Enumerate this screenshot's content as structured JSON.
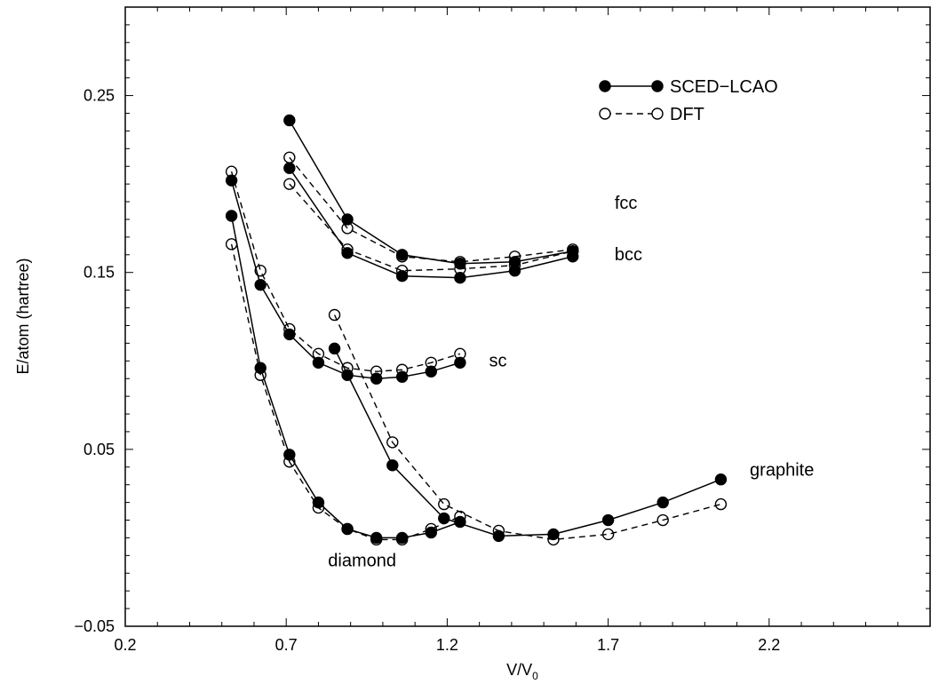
{
  "chart_data": {
    "type": "line",
    "xlabel": "V/V",
    "xlabel_sub": "0",
    "ylabel": "E/atom (hartree)",
    "xlim": [
      0.2,
      2.7
    ],
    "ylim": [
      -0.05,
      0.3
    ],
    "xticks": [
      0.2,
      0.7,
      1.2,
      1.7,
      2.2
    ],
    "xtick_labels": [
      "0.2",
      "0.7",
      "1.2",
      "1.7",
      "2.2"
    ],
    "yticks": [
      -0.05,
      0.05,
      0.15,
      0.25
    ],
    "ytick_labels": [
      "−0.05",
      "0.05",
      "0.15",
      "0.25"
    ],
    "grid": false,
    "legend_position": "top-right",
    "legend": [
      {
        "label": "SCED−LCAO",
        "style": "solid-filled"
      },
      {
        "label": "DFT",
        "style": "dashed-open"
      }
    ],
    "annotations": [
      {
        "text": "fcc",
        "x": 1.72,
        "y": 0.186
      },
      {
        "text": "bcc",
        "x": 1.72,
        "y": 0.157
      },
      {
        "text": "sc",
        "x": 1.33,
        "y": 0.097
      },
      {
        "text": "graphite",
        "x": 2.14,
        "y": 0.035
      },
      {
        "text": "diamond",
        "x": 0.83,
        "y": -0.016
      }
    ],
    "series": [
      {
        "name": "SCED−LCAO",
        "structure": "fcc",
        "style": "solid",
        "x": [
          0.71,
          0.89,
          1.06,
          1.24,
          1.41,
          1.59
        ],
        "y": [
          0.236,
          0.18,
          0.16,
          0.155,
          0.156,
          0.162
        ]
      },
      {
        "name": "DFT",
        "structure": "fcc",
        "style": "dashed",
        "x": [
          0.71,
          0.89,
          1.06,
          1.24,
          1.41,
          1.59
        ],
        "y": [
          0.215,
          0.175,
          0.159,
          0.156,
          0.159,
          0.163
        ]
      },
      {
        "name": "SCED−LCAO",
        "structure": "bcc",
        "style": "solid",
        "x": [
          0.71,
          0.89,
          1.06,
          1.24,
          1.41,
          1.59
        ],
        "y": [
          0.209,
          0.161,
          0.148,
          0.147,
          0.151,
          0.159
        ]
      },
      {
        "name": "DFT",
        "structure": "bcc",
        "style": "dashed",
        "x": [
          0.71,
          0.89,
          1.06,
          1.24,
          1.41,
          1.59
        ],
        "y": [
          0.2,
          0.163,
          0.151,
          0.152,
          0.154,
          0.162
        ]
      },
      {
        "name": "SCED−LCAO",
        "structure": "sc",
        "style": "solid",
        "x": [
          0.53,
          0.62,
          0.71,
          0.8,
          0.89,
          0.98,
          1.06,
          1.15,
          1.24
        ],
        "y": [
          0.202,
          0.143,
          0.115,
          0.099,
          0.092,
          0.09,
          0.091,
          0.094,
          0.099
        ]
      },
      {
        "name": "DFT",
        "structure": "sc",
        "style": "dashed",
        "x": [
          0.53,
          0.62,
          0.71,
          0.8,
          0.89,
          0.98,
          1.06,
          1.15,
          1.24
        ],
        "y": [
          0.207,
          0.151,
          0.118,
          0.104,
          0.096,
          0.094,
          0.095,
          0.099,
          0.104
        ]
      },
      {
        "name": "SCED−LCAO",
        "structure": "diamond",
        "style": "solid",
        "x": [
          0.53,
          0.62,
          0.71,
          0.8,
          0.89,
          0.98,
          1.06,
          1.15,
          1.24
        ],
        "y": [
          0.182,
          0.096,
          0.047,
          0.02,
          0.005,
          0.0,
          0.0,
          0.003,
          0.009
        ]
      },
      {
        "name": "DFT",
        "structure": "diamond",
        "style": "dashed",
        "x": [
          0.53,
          0.62,
          0.71,
          0.8,
          0.89,
          0.98,
          1.06,
          1.15,
          1.24
        ],
        "y": [
          0.166,
          0.092,
          0.043,
          0.017,
          0.005,
          -0.001,
          -0.001,
          0.005,
          0.012
        ]
      },
      {
        "name": "SCED−LCAO",
        "structure": "graphite",
        "style": "solid",
        "x": [
          0.85,
          1.03,
          1.19,
          1.36,
          1.53,
          1.7,
          1.87,
          2.05
        ],
        "y": [
          0.107,
          0.041,
          0.011,
          0.001,
          0.002,
          0.01,
          0.02,
          0.033
        ]
      },
      {
        "name": "DFT",
        "structure": "graphite",
        "style": "dashed",
        "x": [
          0.85,
          1.03,
          1.19,
          1.36,
          1.53,
          1.7,
          1.87,
          2.05
        ],
        "y": [
          0.126,
          0.054,
          0.019,
          0.004,
          -0.001,
          0.002,
          0.01,
          0.019
        ]
      }
    ]
  }
}
